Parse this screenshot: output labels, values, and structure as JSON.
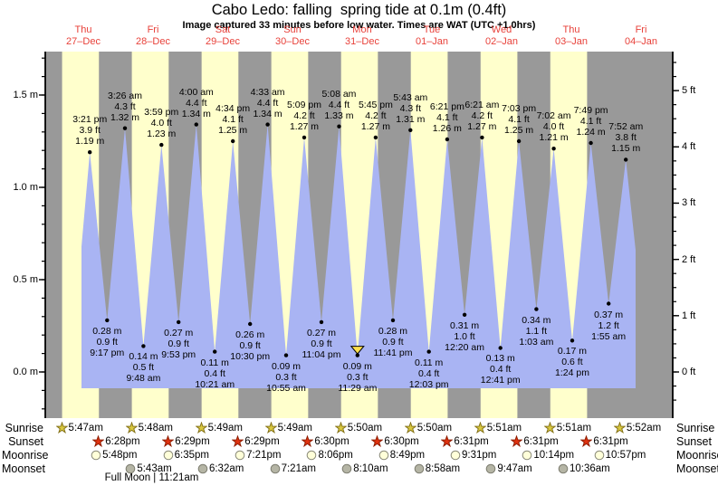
{
  "chart_data": {
    "type": "area",
    "title": "Cabo Ledo: falling  spring tide at 0.1m (0.4ft)",
    "subtitle": "Image captured 33 minutes before low water. Times are WAT (UTC +1.0hrs)",
    "days": [
      {
        "weekday": "Thu",
        "date": "27–Dec"
      },
      {
        "weekday": "Fri",
        "date": "28–Dec"
      },
      {
        "weekday": "Sat",
        "date": "29–Dec"
      },
      {
        "weekday": "Sun",
        "date": "30–Dec"
      },
      {
        "weekday": "Mon",
        "date": "31–Dec"
      },
      {
        "weekday": "Tue",
        "date": "01–Jan"
      },
      {
        "weekday": "Wed",
        "date": "02–Jan"
      },
      {
        "weekday": "Thu",
        "date": "03–Jan"
      },
      {
        "weekday": "Fri",
        "date": "04–Jan"
      }
    ],
    "y_axis_left": {
      "unit": "m",
      "major_ticks": [
        {
          "value": 0.0,
          "label": "0.0 m"
        },
        {
          "value": 0.5,
          "label": "0.5 m"
        },
        {
          "value": 1.0,
          "label": "1.0 m"
        },
        {
          "value": 1.5,
          "label": "1.5 m"
        }
      ],
      "minor_step": 0.1,
      "minor_min": -0.2,
      "minor_max": 1.7
    },
    "y_axis_right": {
      "unit": "ft",
      "major_ticks": [
        {
          "value": 0,
          "label": "0 ft"
        },
        {
          "value": 1,
          "label": "1 ft"
        },
        {
          "value": 2,
          "label": "2 ft"
        },
        {
          "value": 3,
          "label": "3 ft"
        },
        {
          "value": 4,
          "label": "4 ft"
        },
        {
          "value": 5,
          "label": "5 ft"
        }
      ],
      "minor_step": 0.25,
      "minor_min": -0.5,
      "minor_max": 5.5
    },
    "tide_events": [
      {
        "kind": "high",
        "day": 0,
        "hour": 15.35,
        "time": "3:21 pm",
        "ft": "3.9 ft",
        "m": "1.19 m",
        "height_m": 1.19
      },
      {
        "kind": "low",
        "day": 0,
        "hour": 21.283,
        "time": "9:17 pm",
        "ft": "0.9 ft",
        "m": "0.28 m",
        "height_m": 0.28
      },
      {
        "kind": "high",
        "day": 1,
        "hour": 3.433,
        "time": "3:26 am",
        "ft": "4.3 ft",
        "m": "1.32 m",
        "height_m": 1.32
      },
      {
        "kind": "low",
        "day": 1,
        "hour": 9.8,
        "time": "9:48 am",
        "ft": "0.5 ft",
        "m": "0.14 m",
        "height_m": 0.14
      },
      {
        "kind": "high",
        "day": 1,
        "hour": 15.983,
        "time": "3:59 pm",
        "ft": "4.0 ft",
        "m": "1.23 m",
        "height_m": 1.23
      },
      {
        "kind": "low",
        "day": 1,
        "hour": 21.883,
        "time": "9:53 pm",
        "ft": "0.9 ft",
        "m": "0.27 m",
        "height_m": 0.27
      },
      {
        "kind": "high",
        "day": 2,
        "hour": 4.0,
        "time": "4:00 am",
        "ft": "4.4 ft",
        "m": "1.34 m",
        "height_m": 1.34
      },
      {
        "kind": "low",
        "day": 2,
        "hour": 10.35,
        "time": "10:21 am",
        "ft": "0.4 ft",
        "m": "0.11 m",
        "height_m": 0.11
      },
      {
        "kind": "high",
        "day": 2,
        "hour": 16.567,
        "time": "4:34 pm",
        "ft": "4.1 ft",
        "m": "1.25 m",
        "height_m": 1.25
      },
      {
        "kind": "low",
        "day": 2,
        "hour": 22.5,
        "time": "10:30 pm",
        "ft": "0.9 ft",
        "m": "0.26 m",
        "height_m": 0.26
      },
      {
        "kind": "high",
        "day": 3,
        "hour": 4.55,
        "time": "4:33 am",
        "ft": "4.4 ft",
        "m": "1.34 m",
        "height_m": 1.34
      },
      {
        "kind": "low",
        "day": 3,
        "hour": 10.917,
        "time": "10:55 am",
        "ft": "0.3 ft",
        "m": "0.09 m",
        "height_m": 0.09
      },
      {
        "kind": "high",
        "day": 3,
        "hour": 17.15,
        "time": "5:09 pm",
        "ft": "4.2 ft",
        "m": "1.27 m",
        "height_m": 1.27
      },
      {
        "kind": "low",
        "day": 3,
        "hour": 23.067,
        "time": "11:04 pm",
        "ft": "0.9 ft",
        "m": "0.27 m",
        "height_m": 0.27
      },
      {
        "kind": "high",
        "day": 4,
        "hour": 5.133,
        "time": "5:08 am",
        "ft": "4.4 ft",
        "m": "1.33 m",
        "height_m": 1.33
      },
      {
        "kind": "low",
        "day": 4,
        "hour": 11.483,
        "time": "11:29 am",
        "ft": "0.3 ft",
        "m": "0.09 m",
        "height_m": 0.09,
        "current": true
      },
      {
        "kind": "high",
        "day": 4,
        "hour": 17.75,
        "time": "5:45 pm",
        "ft": "4.2 ft",
        "m": "1.27 m",
        "height_m": 1.27
      },
      {
        "kind": "low",
        "day": 4,
        "hour": 23.683,
        "time": "11:41 pm",
        "ft": "0.9 ft",
        "m": "0.28 m",
        "height_m": 0.28
      },
      {
        "kind": "high",
        "day": 5,
        "hour": 5.717,
        "time": "5:43 am",
        "ft": "4.3 ft",
        "m": "1.31 m",
        "height_m": 1.31
      },
      {
        "kind": "low",
        "day": 5,
        "hour": 12.05,
        "time": "12:03 pm",
        "ft": "0.4 ft",
        "m": "0.11 m",
        "height_m": 0.11
      },
      {
        "kind": "high",
        "day": 5,
        "hour": 18.35,
        "time": "6:21 pm",
        "ft": "4.1 ft",
        "m": "1.26 m",
        "height_m": 1.26
      },
      {
        "kind": "low",
        "day": 6,
        "hour": 0.333,
        "time": "12:20 am",
        "ft": "1.0 ft",
        "m": "0.31 m",
        "height_m": 0.31
      },
      {
        "kind": "high",
        "day": 6,
        "hour": 6.35,
        "time": "6:21 am",
        "ft": "4.2 ft",
        "m": "1.27 m",
        "height_m": 1.27
      },
      {
        "kind": "low",
        "day": 6,
        "hour": 12.683,
        "time": "12:41 pm",
        "ft": "0.4 ft",
        "m": "0.13 m",
        "height_m": 0.13
      },
      {
        "kind": "high",
        "day": 6,
        "hour": 19.05,
        "time": "7:03 pm",
        "ft": "4.1 ft",
        "m": "1.25 m",
        "height_m": 1.25
      },
      {
        "kind": "low",
        "day": 7,
        "hour": 1.05,
        "time": "1:03 am",
        "ft": "1.1 ft",
        "m": "0.34 m",
        "height_m": 0.34
      },
      {
        "kind": "high",
        "day": 7,
        "hour": 7.033,
        "time": "7:02 am",
        "ft": "4.0 ft",
        "m": "1.21 m",
        "height_m": 1.21
      },
      {
        "kind": "low",
        "day": 7,
        "hour": 13.4,
        "time": "1:24 pm",
        "ft": "0.6 ft",
        "m": "0.17 m",
        "height_m": 0.17
      },
      {
        "kind": "high",
        "day": 7,
        "hour": 19.817,
        "time": "7:49 pm",
        "ft": "4.1 ft",
        "m": "1.24 m",
        "height_m": 1.24
      },
      {
        "kind": "low",
        "day": 8,
        "hour": 1.917,
        "time": "1:55 am",
        "ft": "1.2 ft",
        "m": "0.37 m",
        "height_m": 0.37
      },
      {
        "kind": "high",
        "day": 8,
        "hour": 7.867,
        "time": "7:52 am",
        "ft": "3.8 ft",
        "m": "1.15 m",
        "height_m": 1.15
      }
    ]
  },
  "astro": {
    "row_labels_left": [
      "Sunrise",
      "Sunset",
      "Moonrise",
      "Moonset"
    ],
    "row_labels_right": [
      "Sunrise",
      "Sunset",
      "Moonrise",
      "Moonset"
    ],
    "sunrise": [
      {
        "day": 0,
        "hour": 5.783,
        "time": "5:47am"
      },
      {
        "day": 1,
        "hour": 5.8,
        "time": "5:48am"
      },
      {
        "day": 2,
        "hour": 5.817,
        "time": "5:49am"
      },
      {
        "day": 3,
        "hour": 5.817,
        "time": "5:49am"
      },
      {
        "day": 4,
        "hour": 5.833,
        "time": "5:50am"
      },
      {
        "day": 5,
        "hour": 5.833,
        "time": "5:50am"
      },
      {
        "day": 6,
        "hour": 5.85,
        "time": "5:51am"
      },
      {
        "day": 7,
        "hour": 5.85,
        "time": "5:51am"
      },
      {
        "day": 8,
        "hour": 5.867,
        "time": "5:52am"
      }
    ],
    "sunset": [
      {
        "day": 0,
        "hour": 18.467,
        "time": "6:28pm"
      },
      {
        "day": 1,
        "hour": 18.483,
        "time": "6:29pm"
      },
      {
        "day": 2,
        "hour": 18.483,
        "time": "6:29pm"
      },
      {
        "day": 3,
        "hour": 18.5,
        "time": "6:30pm"
      },
      {
        "day": 4,
        "hour": 18.5,
        "time": "6:30pm"
      },
      {
        "day": 5,
        "hour": 18.517,
        "time": "6:31pm"
      },
      {
        "day": 6,
        "hour": 18.517,
        "time": "6:31pm"
      },
      {
        "day": 7,
        "hour": 18.517,
        "time": "6:31pm"
      }
    ],
    "moonrise": [
      {
        "day": 0,
        "hour": 17.8,
        "time": "5:48pm"
      },
      {
        "day": 1,
        "hour": 18.583,
        "time": "6:35pm"
      },
      {
        "day": 2,
        "hour": 19.35,
        "time": "7:21pm"
      },
      {
        "day": 3,
        "hour": 20.1,
        "time": "8:06pm"
      },
      {
        "day": 4,
        "hour": 20.817,
        "time": "8:49pm"
      },
      {
        "day": 5,
        "hour": 21.517,
        "time": "9:31pm"
      },
      {
        "day": 6,
        "hour": 22.233,
        "time": "10:14pm"
      },
      {
        "day": 7,
        "hour": 22.95,
        "time": "10:57pm"
      }
    ],
    "moonset": [
      {
        "day": 1,
        "hour": 5.717,
        "time": "5:43am"
      },
      {
        "day": 2,
        "hour": 6.533,
        "time": "6:32am"
      },
      {
        "day": 3,
        "hour": 7.35,
        "time": "7:21am"
      },
      {
        "day": 4,
        "hour": 8.167,
        "time": "8:10am"
      },
      {
        "day": 5,
        "hour": 8.967,
        "time": "8:58am"
      },
      {
        "day": 6,
        "hour": 9.783,
        "time": "9:47am"
      },
      {
        "day": 7,
        "hour": 10.6,
        "time": "10:36am"
      }
    ],
    "full_moon": "Full Moon | 11:21am"
  },
  "colors": {
    "night_band": "#999999",
    "day_band": "#ffffcc",
    "tide_fill": "#a9b4f3",
    "day_label_red": "#e8413a",
    "axis": "#000000",
    "current_marker_fill": "#ffe04d",
    "sunrise_star_fill": "#d9c83f",
    "sunrise_star_stroke": "#85731a",
    "sunset_star_fill": "#e03210",
    "sunset_star_stroke": "#8f1d00",
    "moonrise_fill": "#ffffd9",
    "moonrise_stroke": "#8a8a7a",
    "moonset_fill": "#b5b5a5",
    "moonset_stroke": "#7d7d70"
  }
}
